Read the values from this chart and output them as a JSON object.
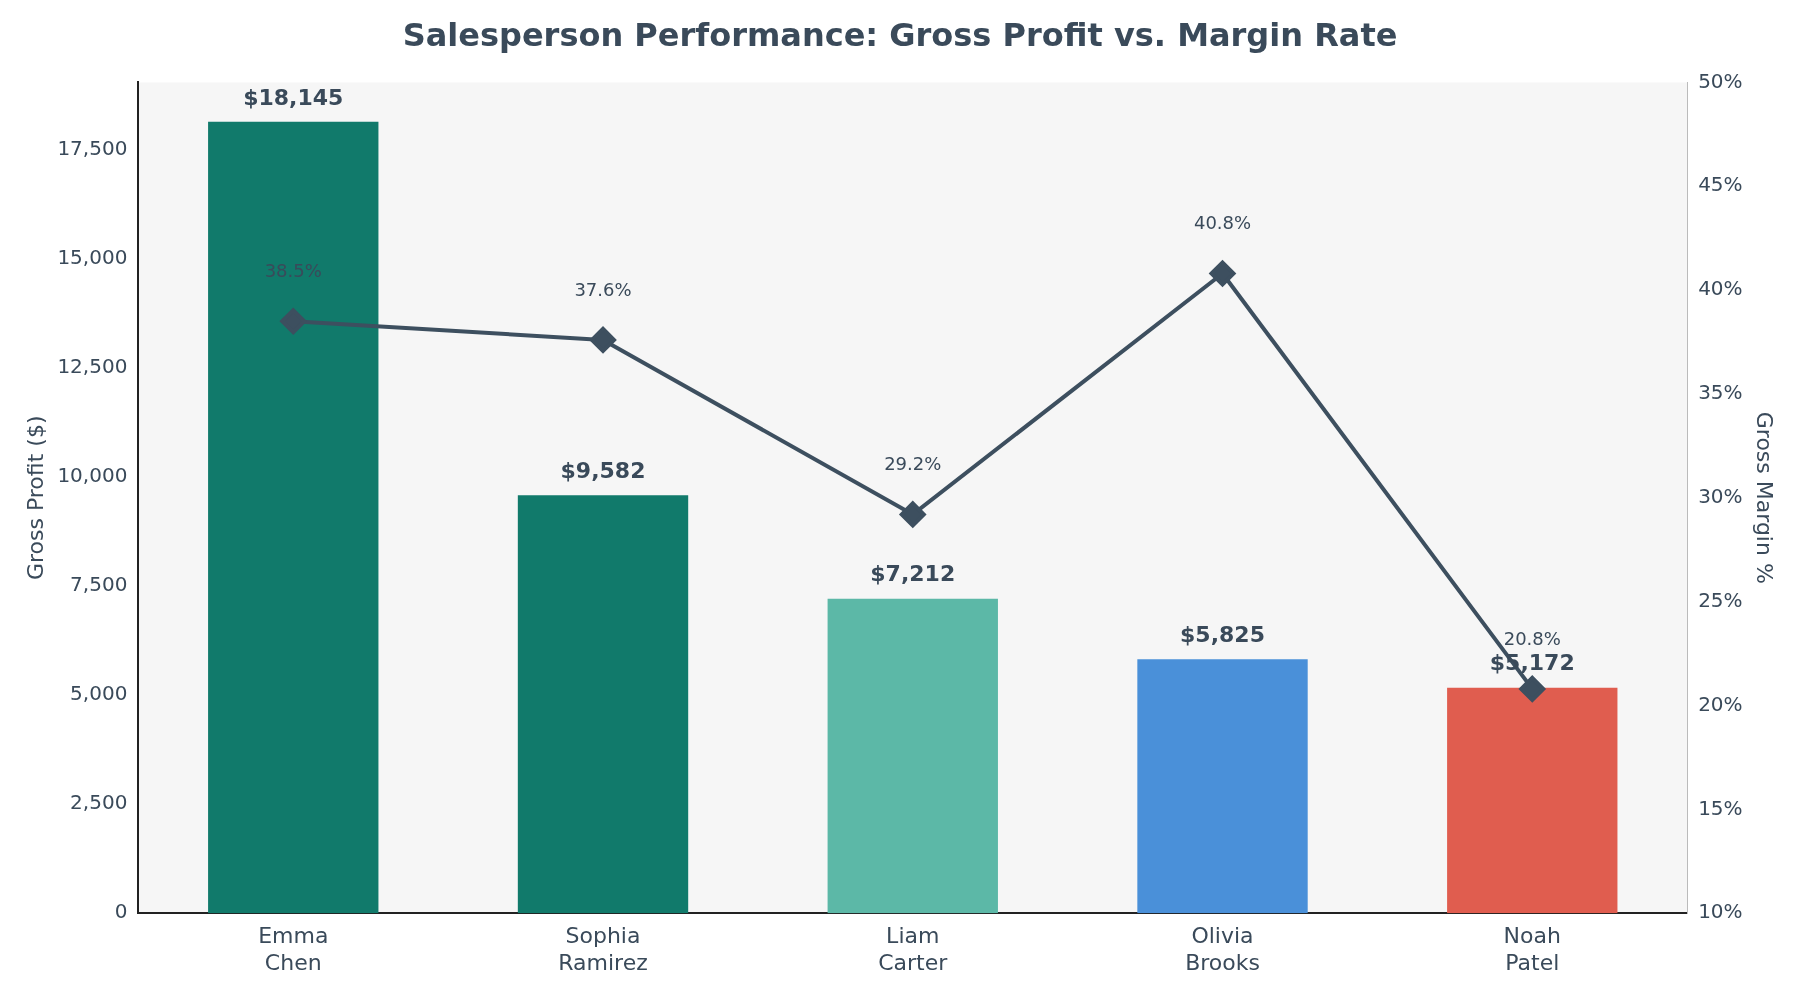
{
  "chart_data": {
    "type": "bar",
    "title": "Salesperson Performance: Gross Profit vs. Margin Rate",
    "categories": [
      "Emma\nChen",
      "Sophia\nRamirez",
      "Liam\nCarter",
      "Olivia\nBrooks",
      "Noah\nPatel"
    ],
    "ylabel": "Gross Profit ($)",
    "y2label": "Gross Margin %",
    "ylim": [
      0,
      19050
    ],
    "yticks": [
      {
        "value": 0,
        "label": "0"
      },
      {
        "value": 2500,
        "label": "2,500"
      },
      {
        "value": 5000,
        "label": "5,000"
      },
      {
        "value": 7500,
        "label": "7,500"
      },
      {
        "value": 10000,
        "label": "10,000"
      },
      {
        "value": 12500,
        "label": "12,500"
      },
      {
        "value": 15000,
        "label": "15,000"
      },
      {
        "value": 17500,
        "label": "17,500"
      }
    ],
    "y2lim": [
      10,
      50
    ],
    "y2ticks": [
      {
        "value": 10,
        "label": "10%"
      },
      {
        "value": 15,
        "label": "15%"
      },
      {
        "value": 20,
        "label": "20%"
      },
      {
        "value": 25,
        "label": "25%"
      },
      {
        "value": 30,
        "label": "30%"
      },
      {
        "value": 35,
        "label": "35%"
      },
      {
        "value": 40,
        "label": "40%"
      },
      {
        "value": 45,
        "label": "45%"
      },
      {
        "value": 50,
        "label": "50%"
      }
    ],
    "series": [
      {
        "colors": [
          "#117a6b",
          "#117a6b",
          "#5cb8a7",
          "#4a90d9",
          "#e05d4f"
        ],
        "values": [
          18145,
          9582,
          7212,
          5825,
          5172
        ],
        "value_labels": [
          "$18,145",
          "$9,582",
          "$7,212",
          "$5,825",
          "$5,172"
        ]
      },
      {
        "type": "line",
        "axis": "y2",
        "color": "#3d4f5f",
        "marker": "diamond",
        "values": [
          38.5,
          37.6,
          29.2,
          40.8,
          20.8
        ],
        "value_labels": [
          "38.5%",
          "37.6%",
          "29.2%",
          "40.8%",
          "20.8%"
        ]
      }
    ],
    "grid": false,
    "legend": false
  }
}
